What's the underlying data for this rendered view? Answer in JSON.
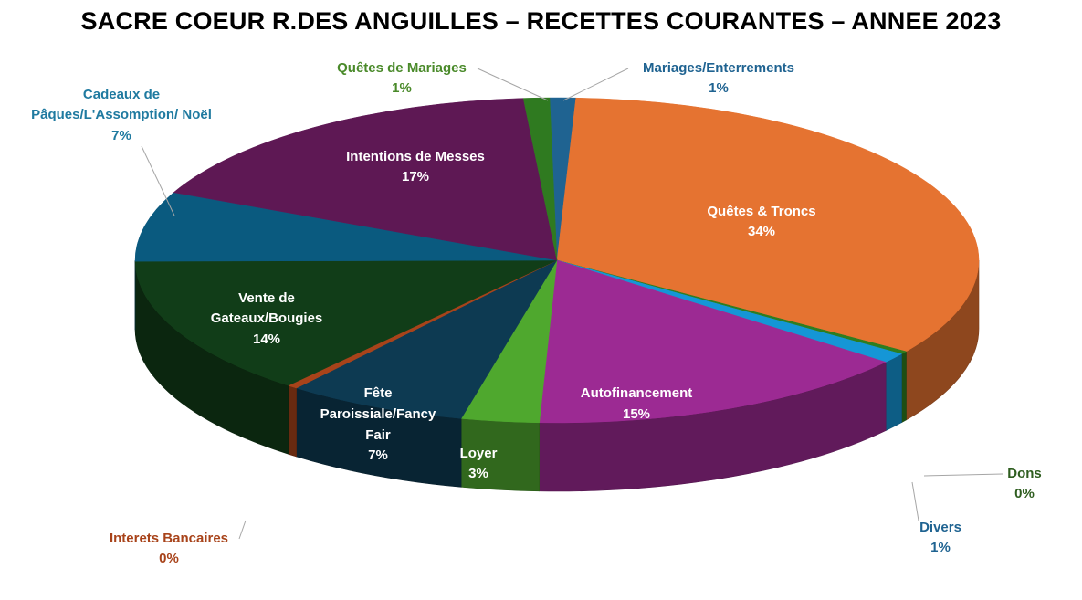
{
  "chart_data": {
    "type": "pie",
    "title": "SACRE COEUR R.DES ANGUILLES – RECETTES COURANTES – ANNEE 2023",
    "slices": [
      {
        "label": "Mariages/Enterrements",
        "value": 1,
        "value_label": "1%",
        "color": "#1f6391",
        "label_color": "#1f6391",
        "label_position": "outside"
      },
      {
        "label": "Quêtes & Troncs",
        "value": 34,
        "value_label": "34%",
        "color": "#e57331",
        "label_color": "#ffffff",
        "label_position": "inside"
      },
      {
        "label": "Dons",
        "value": 0.3,
        "value_label": "0%",
        "color": "#2e7d1f",
        "label_color": "#2e5d1f",
        "label_position": "outside"
      },
      {
        "label": "Divers",
        "value": 1,
        "value_label": "1%",
        "color": "#1596d6",
        "label_color": "#1f6391",
        "label_position": "outside"
      },
      {
        "label": "Autofinancement",
        "value": 15,
        "value_label": "15%",
        "color": "#9c2a93",
        "label_color": "#ffffff",
        "label_position": "inside"
      },
      {
        "label": "Loyer",
        "value": 3,
        "value_label": "3%",
        "color": "#4fa82e",
        "label_color": "#ffffff",
        "label_position": "inside"
      },
      {
        "label": "Fête Paroissiale/Fancy Fair",
        "value": 7,
        "value_label": "7%",
        "color": "#0d3a52",
        "label_color": "#ffffff",
        "label_position": "inside"
      },
      {
        "label": "Interets Bancaires",
        "value": 0.4,
        "value_label": "0%",
        "color": "#a8431a",
        "label_color": "#a8431a",
        "label_position": "outside"
      },
      {
        "label": "Vente de Gateaux/Bougies",
        "value": 14,
        "value_label": "14%",
        "color": "#113d18",
        "label_color": "#ffffff",
        "label_position": "inside"
      },
      {
        "label": "Cadeaux de Pâques/L'Assomption/ Noël",
        "value": 7,
        "value_label": "7%",
        "color": "#0a5a7f",
        "label_color": "#1f7aa0",
        "label_position": "outside"
      },
      {
        "label": "Intentions de Messes",
        "value": 17,
        "value_label": "17%",
        "color": "#5e1854",
        "label_color": "#ffffff",
        "label_position": "inside"
      },
      {
        "label": "Quêtes de Mariages",
        "value": 1,
        "value_label": "1%",
        "color": "#2f7a20",
        "label_color": "#4a8a2a",
        "label_position": "outside"
      }
    ],
    "legend": "none",
    "style": "3d-pie"
  }
}
